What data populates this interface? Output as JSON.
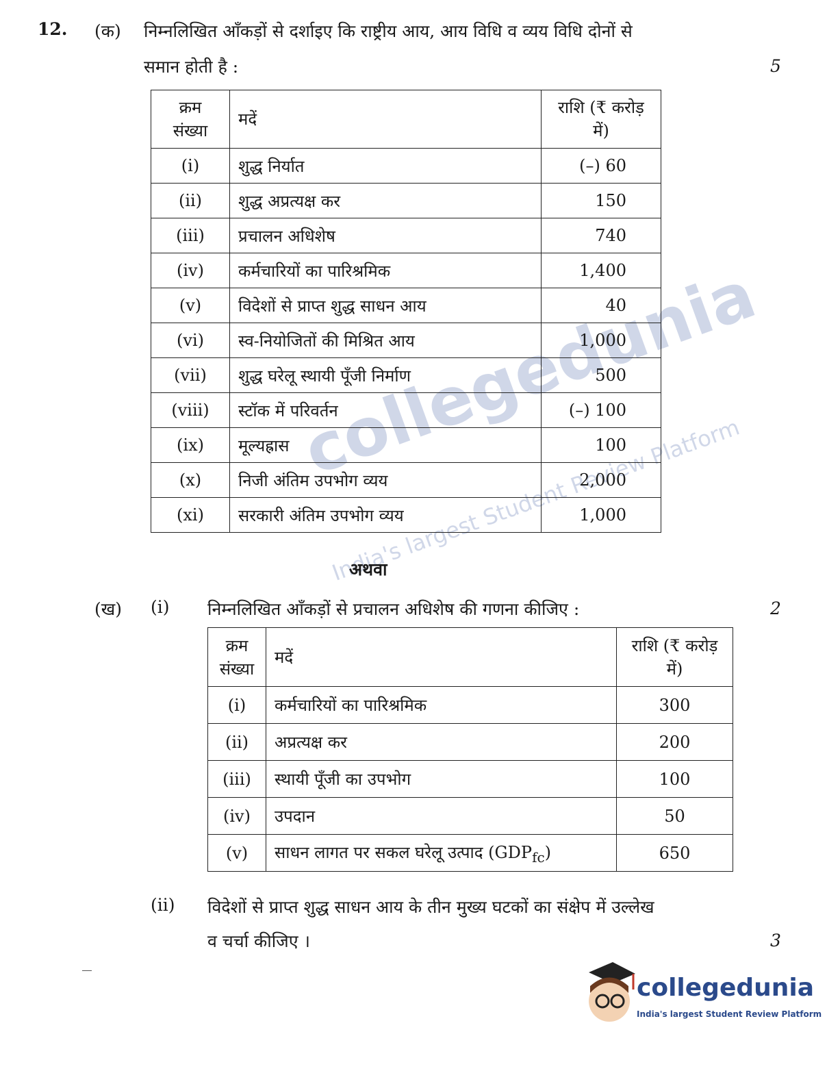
{
  "question": {
    "number": "12.",
    "part_a": {
      "label": "(क)",
      "text_line1": "निम्नलिखित आँकड़ों से दर्शाइए कि राष्ट्रीय आय, आय विधि व व्यय विधि दोनों से",
      "text_line2": "समान होती है :",
      "marks": "5",
      "table": {
        "headers": [
          "क्रम संख्या",
          "मदें",
          "राशि (₹ करोड़ में)"
        ],
        "rows": [
          [
            "(i)",
            "शुद्ध निर्यात",
            "(–) 60"
          ],
          [
            "(ii)",
            "शुद्ध अप्रत्यक्ष कर",
            "150"
          ],
          [
            "(iii)",
            "प्रचालन अधिशेष",
            "740"
          ],
          [
            "(iv)",
            "कर्मचारियों का पारिश्रमिक",
            "1,400"
          ],
          [
            "(v)",
            "विदेशों से प्राप्त शुद्ध साधन आय",
            "40"
          ],
          [
            "(vi)",
            "स्व-नियोजितों की मिश्रित आय",
            "1,000"
          ],
          [
            "(vii)",
            "शुद्ध घरेलू स्थायी पूँजी निर्माण",
            "500"
          ],
          [
            "(viii)",
            "स्टॉक में परिवर्तन",
            "(–) 100"
          ],
          [
            "(ix)",
            "मूल्यह्रास",
            "100"
          ],
          [
            "(x)",
            "निजी अंतिम उपभोग व्यय",
            "2,000"
          ],
          [
            "(xi)",
            "सरकारी अंतिम उपभोग व्यय",
            "1,000"
          ]
        ]
      }
    },
    "or_label": "अथवा",
    "part_b": {
      "label": "(ख)",
      "sub_i": {
        "label": "(i)",
        "text": "निम्नलिखित आँकड़ों से प्रचालन अधिशेष की गणना कीजिए :",
        "marks": "2",
        "table": {
          "headers": [
            "क्रम संख्या",
            "मदें",
            "राशि (₹ करोड़ में)"
          ],
          "rows": [
            [
              "(i)",
              "कर्मचारियों का पारिश्रमिक",
              "300"
            ],
            [
              "(ii)",
              "अप्रत्यक्ष कर",
              "200"
            ],
            [
              "(iii)",
              "स्थायी पूँजी का उपभोग",
              "100"
            ],
            [
              "(iv)",
              "उपदान",
              "50"
            ],
            [
              "(v)",
              "साधन लागत पर सकल घरेलू उत्पाद (GDP",
              "650"
            ]
          ],
          "subscript": "fc",
          "closing": ")"
        }
      },
      "sub_ii": {
        "label": "(ii)",
        "text_line1": "विदेशों से प्राप्त शुद्ध साधन आय के तीन मुख्य घटकों का संक्षेप में उल्लेख",
        "text_line2": "व चर्चा कीजिए ।",
        "marks": "3"
      }
    }
  },
  "watermark": {
    "name": "collegedunia",
    "tagline": "India's largest Student Review Platform"
  },
  "logo": {
    "name": "collegedunia",
    "tagline": "India's largest Student Review Platform"
  }
}
